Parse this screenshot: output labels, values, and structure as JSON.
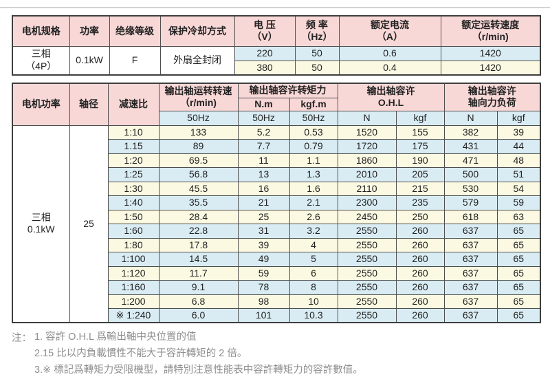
{
  "colors": {
    "header_pink": "#f8d7d7",
    "row_blue": "#d9ecf3",
    "row_cream": "#fcf9e2",
    "merged_cell_white": "#ffffff",
    "border_dark": "#4e4e4e",
    "top_rule_gray": "#d2d2d2",
    "note_text_gray": "#8e8e8e"
  },
  "table1": {
    "col_headers": [
      "电机规格",
      "功率",
      "绝缘等级",
      "保护冷却方式",
      "电 压\n（V）",
      "频 率\n（Hz）",
      "额定电流\n（A）",
      "额定运转速度\n（r/min)"
    ],
    "spec": {
      "motor_type": "三相\n（4P）",
      "power": "0.1kW",
      "insulation_class": "F",
      "cooling": "外扇全封闭"
    },
    "rows": [
      [
        "220",
        "50",
        "0.6",
        "1420"
      ],
      [
        "380",
        "50",
        "0.4",
        "1420"
      ]
    ]
  },
  "table2": {
    "header": {
      "motor_power": "电机功率",
      "shaft_dia": "轴径",
      "ratio": "减速比",
      "output_speed": "输出轴运转转速\n（r/min)",
      "output_torque": "输出轴容许转矩力",
      "torque_nm": "N.m",
      "torque_kgfm": "kgf.m",
      "ohl": "输出轴容许\nO.H.L",
      "axial": "输出轴容许\n轴向力负荷",
      "hz_speed": "50Hz",
      "hz_nm": "50Hz",
      "hz_kgfm": "50Hz",
      "ohl_n": "N",
      "ohl_kgf": "kgf",
      "axial_n": "N",
      "axial_kgf": "kgf"
    },
    "motor_power_value": "三相\n0.1kW",
    "shaft_dia_value": "25",
    "rows": [
      [
        "1:10",
        "133",
        "5.2",
        "0.53",
        "1520",
        "155",
        "382",
        "39"
      ],
      [
        "1.15",
        "89",
        "7.7",
        "0.79",
        "1720",
        "175",
        "431",
        "44"
      ],
      [
        "1:20",
        "69.5",
        "11",
        "1.1",
        "1860",
        "190",
        "471",
        "48"
      ],
      [
        "1:25",
        "56.8",
        "13",
        "1.3",
        "2010",
        "205",
        "500",
        "51"
      ],
      [
        "1:30",
        "45.5",
        "16",
        "1.6",
        "2110",
        "215",
        "530",
        "54"
      ],
      [
        "1:40",
        "35.5",
        "21",
        "2.1",
        "2300",
        "235",
        "579",
        "59"
      ],
      [
        "1:50",
        "28.4",
        "25",
        "2.6",
        "2450",
        "250",
        "618",
        "63"
      ],
      [
        "1:60",
        "22.8",
        "31",
        "3.2",
        "2550",
        "260",
        "637",
        "65"
      ],
      [
        "1:80",
        "17.8",
        "39",
        "4",
        "2550",
        "260",
        "637",
        "65"
      ],
      [
        "1:100",
        "14.5",
        "49",
        "5",
        "2550",
        "260",
        "637",
        "65"
      ],
      [
        "1:120",
        "11.7",
        "59",
        "6",
        "2550",
        "260",
        "637",
        "65"
      ],
      [
        "1:160",
        "9.1",
        "78",
        "8",
        "2550",
        "260",
        "637",
        "65"
      ],
      [
        "1:200",
        "6.8",
        "98",
        "10",
        "2550",
        "260",
        "637",
        "65"
      ],
      [
        "※ 1:240",
        "6.0",
        "101",
        "10.3",
        "2550",
        "260",
        "637",
        "65"
      ]
    ]
  },
  "notes": {
    "prefix": "注：",
    "items": [
      "1. 容許 O.H.L 爲輸出軸中央位置的值",
      "2.15 比以内負載慣性不能大于容許轉矩的 2 倍。",
      "3.※ 標記爲轉矩力受限機型，請特別注意性能表中容許轉矩力的容許數值。"
    ]
  }
}
